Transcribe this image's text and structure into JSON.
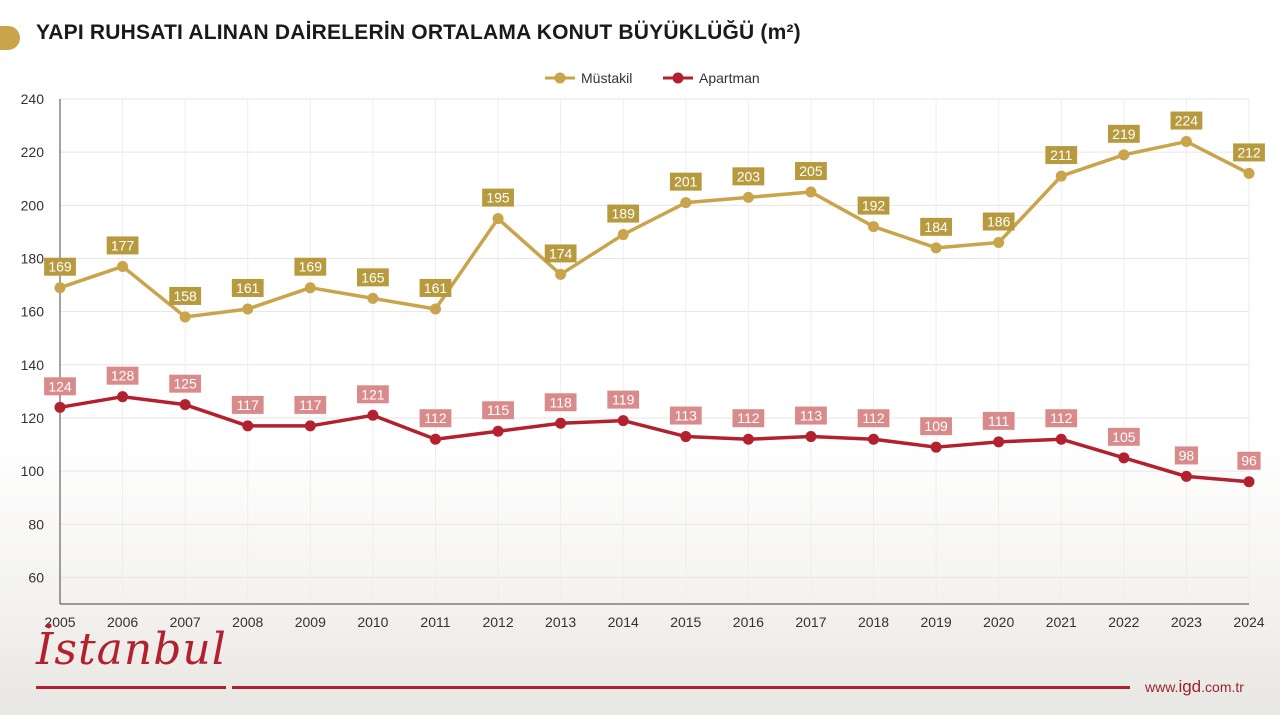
{
  "title": "YAPI RUHSATI ALINAN DAİRELERİN ORTALAMA KONUT BÜYÜKLÜĞÜ (m²)",
  "brand": {
    "logo_text": "İstanbul",
    "website_prefix": "www.",
    "website_main": "igd",
    "website_suffix": ".com.tr",
    "accent_color": "#b3202e"
  },
  "chart_data": {
    "type": "line",
    "title": "YAPI RUHSATI ALINAN DAİRELERİN ORTALAMA KONUT BÜYÜKLÜĞÜ (m²)",
    "xlabel": "",
    "ylabel": "",
    "ylim": [
      50,
      240
    ],
    "yticks": [
      60,
      80,
      100,
      120,
      140,
      160,
      180,
      200,
      220,
      240
    ],
    "grid": true,
    "legend_position": "top-center",
    "categories": [
      "2005",
      "2006",
      "2007",
      "2008",
      "2009",
      "2010",
      "2011",
      "2012",
      "2013",
      "2014",
      "2015",
      "2016",
      "2017",
      "2018",
      "2019",
      "2020",
      "2021",
      "2022",
      "2023",
      "2024"
    ],
    "series": [
      {
        "name": "Müstakil",
        "color": "#c9a44a",
        "label_color": "#b89a3e",
        "values": [
          169,
          177,
          158,
          161,
          169,
          165,
          161,
          195,
          174,
          189,
          201,
          203,
          205,
          192,
          184,
          186,
          211,
          219,
          224,
          212
        ]
      },
      {
        "name": "Apartman",
        "color": "#b3202e",
        "label_color": "#d98b8b",
        "values": [
          124,
          128,
          125,
          117,
          117,
          121,
          112,
          115,
          118,
          119,
          113,
          112,
          113,
          112,
          109,
          111,
          112,
          105,
          98,
          96
        ]
      }
    ]
  }
}
